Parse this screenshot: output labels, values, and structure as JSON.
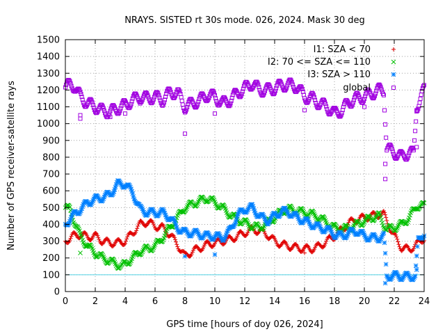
{
  "chart_data": {
    "type": "scatter",
    "title": "NRAYS. SISTED rt 30s mode. 026, 2024. Mask 30 deg",
    "xlabel": "GPS time [hours of doy 026, 2024]",
    "ylabel": "Number of GPS receiver-satellite rays",
    "xlim": [
      0,
      24
    ],
    "ylim": [
      0,
      1500
    ],
    "x_ticks": [
      "0",
      "2",
      "4",
      "6",
      "8",
      "10",
      "12",
      "14",
      "16",
      "18",
      "20",
      "22",
      "24"
    ],
    "y_ticks": [
      "0",
      "100",
      "200",
      "300",
      "400",
      "500",
      "600",
      "700",
      "800",
      "900",
      "1000",
      "1100",
      "1200",
      "1300",
      "1400",
      "1500"
    ],
    "grid": true,
    "legend_position": "top-right",
    "threshold_line": {
      "y": 100,
      "color": "#4fd0e4"
    },
    "series": [
      {
        "name": "I1: SZA < 70",
        "marker": "+",
        "color": "#e00000",
        "points": [
          [
            0,
            300
          ],
          [
            0.5,
            330
          ],
          [
            1,
            340
          ],
          [
            1.5,
            325
          ],
          [
            2,
            330
          ],
          [
            2.5,
            300
          ],
          [
            3,
            290
          ],
          [
            3.5,
            290
          ],
          [
            4,
            300
          ],
          [
            4.5,
            350
          ],
          [
            5,
            400
          ],
          [
            5.5,
            415
          ],
          [
            6,
            390
          ],
          [
            6.5,
            380
          ],
          [
            7,
            340
          ],
          [
            7.5,
            280
          ],
          [
            8,
            210
          ],
          [
            8.5,
            240
          ],
          [
            9,
            260
          ],
          [
            9.5,
            280
          ],
          [
            10,
            290
          ],
          [
            10.5,
            300
          ],
          [
            11,
            310
          ],
          [
            11.5,
            330
          ],
          [
            12,
            350
          ],
          [
            12.5,
            370
          ],
          [
            13,
            360
          ],
          [
            13.5,
            340
          ],
          [
            14,
            300
          ],
          [
            14.5,
            280
          ],
          [
            15,
            270
          ],
          [
            15.5,
            260
          ],
          [
            16,
            255
          ],
          [
            16.5,
            255
          ],
          [
            17,
            270
          ],
          [
            17.5,
            300
          ],
          [
            18,
            330
          ],
          [
            18.5,
            370
          ],
          [
            19,
            410
          ],
          [
            19.5,
            430
          ],
          [
            20,
            440
          ],
          [
            20.5,
            450
          ],
          [
            21,
            460
          ],
          [
            21.3,
            460
          ],
          [
            21.6,
            400
          ],
          [
            22,
            330
          ],
          [
            22.5,
            260
          ],
          [
            23,
            250
          ],
          [
            23.5,
            280
          ],
          [
            24,
            320
          ]
        ]
      },
      {
        "name": "I2: 70 <= SZA <= 110",
        "marker": "x",
        "color": "#00c000",
        "points": [
          [
            0,
            500
          ],
          [
            0.3,
            490
          ],
          [
            0.6,
            420
          ],
          [
            1,
            330
          ],
          [
            1.5,
            270
          ],
          [
            2,
            230
          ],
          [
            2.5,
            200
          ],
          [
            3,
            180
          ],
          [
            3.5,
            160
          ],
          [
            3.8,
            150
          ],
          [
            4,
            165
          ],
          [
            4.5,
            200
          ],
          [
            5,
            240
          ],
          [
            5.5,
            255
          ],
          [
            6,
            270
          ],
          [
            6.5,
            320
          ],
          [
            7,
            380
          ],
          [
            7.5,
            440
          ],
          [
            8,
            500
          ],
          [
            8.5,
            520
          ],
          [
            9,
            540
          ],
          [
            9.5,
            555
          ],
          [
            10,
            530
          ],
          [
            10.5,
            500
          ],
          [
            11,
            460
          ],
          [
            11.5,
            430
          ],
          [
            12,
            410
          ],
          [
            12.5,
            390
          ],
          [
            13,
            380
          ],
          [
            13.5,
            410
          ],
          [
            14,
            440
          ],
          [
            14.5,
            480
          ],
          [
            15,
            490
          ],
          [
            15.5,
            480
          ],
          [
            16,
            470
          ],
          [
            16.5,
            460
          ],
          [
            17,
            440
          ],
          [
            17.5,
            410
          ],
          [
            18,
            380
          ],
          [
            18.5,
            370
          ],
          [
            19,
            380
          ],
          [
            19.5,
            400
          ],
          [
            20,
            420
          ],
          [
            20.5,
            440
          ],
          [
            21,
            450
          ],
          [
            21.5,
            370
          ],
          [
            22,
            380
          ],
          [
            22.5,
            400
          ],
          [
            23,
            440
          ],
          [
            23.5,
            510
          ],
          [
            24,
            510
          ]
        ]
      },
      {
        "name": "I3: SZA > 110",
        "marker": "*",
        "color": "#0080ff",
        "points": [
          [
            0,
            400
          ],
          [
            0.5,
            450
          ],
          [
            1,
            490
          ],
          [
            1.5,
            530
          ],
          [
            2,
            550
          ],
          [
            2.5,
            560
          ],
          [
            3,
            580
          ],
          [
            3.5,
            640
          ],
          [
            4,
            640
          ],
          [
            4.5,
            590
          ],
          [
            5,
            490
          ],
          [
            5.5,
            470
          ],
          [
            6,
            470
          ],
          [
            6.5,
            470
          ],
          [
            7,
            440
          ],
          [
            7.5,
            380
          ],
          [
            8,
            350
          ],
          [
            8.5,
            350
          ],
          [
            9,
            340
          ],
          [
            9.5,
            330
          ],
          [
            10,
            330
          ],
          [
            10.5,
            320
          ],
          [
            11,
            360
          ],
          [
            11.5,
            450
          ],
          [
            12,
            490
          ],
          [
            12.5,
            500
          ],
          [
            13,
            450
          ],
          [
            13.5,
            420
          ],
          [
            14,
            450
          ],
          [
            14.5,
            480
          ],
          [
            15,
            470
          ],
          [
            15.5,
            440
          ],
          [
            16,
            420
          ],
          [
            16.5,
            400
          ],
          [
            17,
            380
          ],
          [
            17.5,
            370
          ],
          [
            18,
            340
          ],
          [
            18.5,
            330
          ],
          [
            19,
            350
          ],
          [
            19.5,
            360
          ],
          [
            20,
            330
          ],
          [
            20.5,
            320
          ],
          [
            21,
            320
          ],
          [
            21.3,
            330
          ],
          [
            21.5,
            90
          ],
          [
            22,
            95
          ],
          [
            22.5,
            90
          ],
          [
            23,
            90
          ],
          [
            23.4,
            90
          ],
          [
            23.6,
            300
          ],
          [
            24,
            350
          ]
        ]
      },
      {
        "name": "global",
        "marker": "square",
        "color": "#a000e0",
        "points": [
          [
            0,
            1220
          ],
          [
            0.3,
            1230
          ],
          [
            0.6,
            1225
          ],
          [
            1,
            1160
          ],
          [
            1.5,
            1120
          ],
          [
            2,
            1100
          ],
          [
            2.5,
            1075
          ],
          [
            3,
            1070
          ],
          [
            3.5,
            1090
          ],
          [
            4,
            1110
          ],
          [
            4.5,
            1140
          ],
          [
            5,
            1160
          ],
          [
            5.5,
            1150
          ],
          [
            6,
            1160
          ],
          [
            6.5,
            1140
          ],
          [
            7,
            1185
          ],
          [
            7.5,
            1185
          ],
          [
            8,
            1100
          ],
          [
            8.5,
            1120
          ],
          [
            9,
            1140
          ],
          [
            9.5,
            1170
          ],
          [
            10,
            1160
          ],
          [
            10.5,
            1120
          ],
          [
            11,
            1140
          ],
          [
            11.5,
            1180
          ],
          [
            12,
            1210
          ],
          [
            12.5,
            1240
          ],
          [
            13,
            1200
          ],
          [
            13.5,
            1200
          ],
          [
            14,
            1210
          ],
          [
            14.5,
            1230
          ],
          [
            15,
            1230
          ],
          [
            15.5,
            1220
          ],
          [
            16,
            1160
          ],
          [
            16.5,
            1150
          ],
          [
            17,
            1120
          ],
          [
            17.5,
            1100
          ],
          [
            18,
            1060
          ],
          [
            18.5,
            1080
          ],
          [
            19,
            1130
          ],
          [
            19.5,
            1150
          ],
          [
            20,
            1160
          ],
          [
            20.5,
            1180
          ],
          [
            21,
            1200
          ],
          [
            21.3,
            1200
          ],
          [
            21.5,
            850
          ],
          [
            22,
            830
          ],
          [
            22.5,
            800
          ],
          [
            23,
            830
          ],
          [
            23.3,
            820
          ],
          [
            23.5,
            1100
          ],
          [
            24,
            1200
          ]
        ]
      }
    ],
    "outliers": {
      "I1: SZA < 70": [
        [
          16,
          230
        ]
      ],
      "I2: 70 <= SZA <= 110": [
        [
          1,
          230
        ]
      ],
      "I3: SZA > 110": [
        [
          8,
          210
        ],
        [
          10,
          220
        ],
        [
          21.4,
          50
        ],
        [
          23.5,
          130
        ]
      ],
      "global": [
        [
          1,
          1030
        ],
        [
          1,
          1050
        ],
        [
          3,
          1040
        ],
        [
          4,
          1060
        ],
        [
          5,
          1120
        ],
        [
          8,
          940
        ],
        [
          10,
          1060
        ],
        [
          16,
          1080
        ],
        [
          20,
          1100
        ],
        [
          21.4,
          670
        ],
        [
          21.4,
          760
        ],
        [
          23.5,
          860
        ],
        [
          23.5,
          1080
        ]
      ]
    }
  }
}
